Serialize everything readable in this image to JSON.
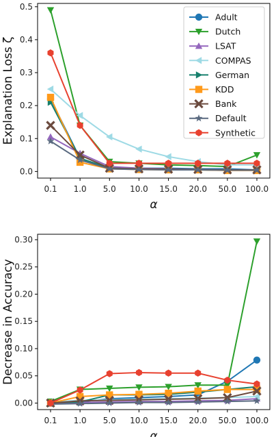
{
  "chart_data": [
    {
      "type": "line",
      "ylabel": "Explanation Loss ζ",
      "xlabel": "α",
      "categories": [
        "0.1",
        "1.0",
        "5.0",
        "10.0",
        "15.0",
        "20.0",
        "50.0",
        "100.0"
      ],
      "ylim": [
        -0.02,
        0.51
      ],
      "yticks": [
        "0.0",
        "0.1",
        "0.2",
        "0.3",
        "0.4",
        "0.5"
      ],
      "ytick_values": [
        0,
        0.1,
        0.2,
        0.3,
        0.4,
        0.5
      ],
      "legend_position": "top-right",
      "series": [
        {
          "name": "Adult",
          "color": "#1f77b4",
          "marker": "circle",
          "values": [
            0.22,
            0.04,
            0.01,
            0.01,
            0.01,
            0.008,
            0.008,
            0.005
          ]
        },
        {
          "name": "Dutch",
          "color": "#2ca02c",
          "marker": "triangle-down",
          "values": [
            0.49,
            0.14,
            0.03,
            0.025,
            0.02,
            0.018,
            0.015,
            0.05
          ]
        },
        {
          "name": "LSAT",
          "color": "#9467bd",
          "marker": "triangle-up",
          "values": [
            0.105,
            0.055,
            0.015,
            0.01,
            0.008,
            0.006,
            0.005,
            0.004
          ]
        },
        {
          "name": "COMPAS",
          "color": "#9edae5",
          "marker": "triangle-left",
          "values": [
            0.25,
            0.17,
            0.105,
            0.068,
            0.045,
            0.03,
            0.02,
            0.02
          ]
        },
        {
          "name": "German",
          "color": "#17806d",
          "marker": "triangle-right",
          "values": [
            0.21,
            0.04,
            0.01,
            0.008,
            0.006,
            0.005,
            0.004,
            0.004
          ]
        },
        {
          "name": "KDD",
          "color": "#ff9a1a",
          "marker": "square",
          "values": [
            0.225,
            0.028,
            0.008,
            0.006,
            0.005,
            0.005,
            0.003,
            0.003
          ]
        },
        {
          "name": "Bank",
          "color": "#6b4a3e",
          "marker": "x",
          "values": [
            0.14,
            0.05,
            0.01,
            0.008,
            0.007,
            0.006,
            0.005,
            0.005
          ]
        },
        {
          "name": "Default",
          "color": "#5a6a80",
          "marker": "star",
          "values": [
            0.092,
            0.035,
            0.008,
            0.006,
            0.005,
            0.005,
            0.004,
            0.004
          ]
        },
        {
          "name": "Synthetic",
          "color": "#e8412f",
          "marker": "hexagon",
          "values": [
            0.36,
            0.14,
            0.025,
            0.025,
            0.025,
            0.025,
            0.025,
            0.025
          ]
        }
      ]
    },
    {
      "type": "line",
      "ylabel": "Decrease in Accuracy",
      "xlabel": "α",
      "categories": [
        "0.1",
        "1.0",
        "5.0",
        "10.0",
        "15.0",
        "20.0",
        "50.0",
        "100.0"
      ],
      "ylim": [
        -0.012,
        0.31
      ],
      "yticks": [
        "0.00",
        "0.05",
        "0.10",
        "0.15",
        "0.20",
        "0.25",
        "0.30"
      ],
      "ytick_values": [
        0,
        0.05,
        0.1,
        0.15,
        0.2,
        0.25,
        0.3
      ],
      "series": [
        {
          "name": "Adult",
          "color": "#1f77b4",
          "marker": "circle",
          "values": [
            0.0,
            0.002,
            0.008,
            0.01,
            0.012,
            0.015,
            0.04,
            0.079
          ]
        },
        {
          "name": "Dutch",
          "color": "#2ca02c",
          "marker": "triangle-down",
          "values": [
            0.003,
            0.025,
            0.027,
            0.029,
            0.03,
            0.033,
            0.033,
            0.297
          ]
        },
        {
          "name": "LSAT",
          "color": "#9467bd",
          "marker": "triangle-up",
          "values": [
            0.0,
            0.001,
            0.002,
            0.003,
            0.003,
            0.004,
            0.005,
            0.008
          ]
        },
        {
          "name": "COMPAS",
          "color": "#9edae5",
          "marker": "triangle-left",
          "values": [
            0.002,
            0.005,
            0.006,
            0.007,
            0.008,
            0.009,
            0.01,
            0.012
          ]
        },
        {
          "name": "German",
          "color": "#17806d",
          "marker": "triangle-right",
          "values": [
            0.001,
            0.002,
            0.015,
            0.015,
            0.016,
            0.02,
            0.025,
            0.03
          ]
        },
        {
          "name": "KDD",
          "color": "#ff9a1a",
          "marker": "square",
          "values": [
            0.0,
            0.012,
            0.015,
            0.016,
            0.018,
            0.022,
            0.025,
            0.025
          ]
        },
        {
          "name": "Bank",
          "color": "#6b4a3e",
          "marker": "x",
          "values": [
            0.0,
            0.004,
            0.005,
            0.006,
            0.007,
            0.008,
            0.01,
            0.022
          ]
        },
        {
          "name": "Default",
          "color": "#5a6a80",
          "marker": "star",
          "values": [
            -0.002,
            -0.001,
            0.0,
            0.001,
            0.001,
            0.002,
            0.003,
            0.004
          ]
        },
        {
          "name": "Synthetic",
          "color": "#e8412f",
          "marker": "hexagon",
          "values": [
            0.0,
            0.024,
            0.054,
            0.056,
            0.055,
            0.055,
            0.042,
            0.035
          ]
        }
      ]
    }
  ]
}
